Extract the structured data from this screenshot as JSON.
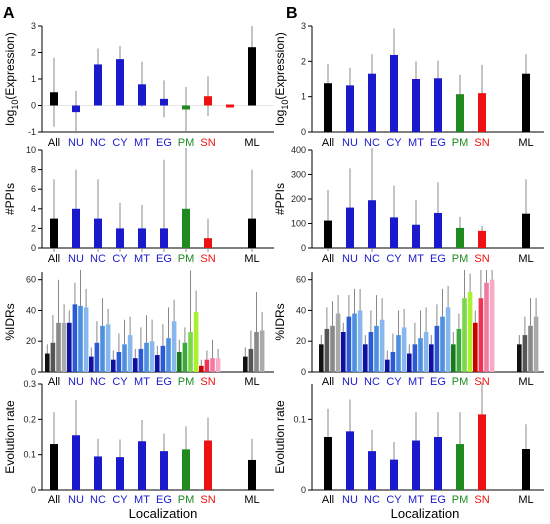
{
  "figure": {
    "panel_labels": [
      "A",
      "B"
    ],
    "xlabel": "Localization"
  },
  "colors": {
    "All": "#000000",
    "NU": "#1a1acc",
    "NC": "#1a1acc",
    "CY": "#1a1acc",
    "MT": "#1a1acc",
    "EG": "#1a1acc",
    "PM": "#1f8a1f",
    "SN": "#ee1111",
    "ML": "#000000"
  },
  "idr_colors": {
    "All": [
      "#111111",
      "#555555",
      "#888888",
      "#aaaaaa"
    ],
    "NU": [
      "#1010a0",
      "#2a5ad6",
      "#4f8fe0",
      "#87b7ec"
    ],
    "NC": [
      "#1010a0",
      "#2a5ad6",
      "#4f8fe0",
      "#87b7ec"
    ],
    "CY": [
      "#1010a0",
      "#2a5ad6",
      "#4f8fe0",
      "#87b7ec"
    ],
    "MT": [
      "#1010a0",
      "#2a5ad6",
      "#4f8fe0",
      "#87b7ec"
    ],
    "EG": [
      "#1010a0",
      "#2a5ad6",
      "#4f8fe0",
      "#87b7ec"
    ],
    "PM": [
      "#1a7a1a",
      "#3aa83a",
      "#7ad64a",
      "#a8f030"
    ],
    "SN": [
      "#cc0000",
      "#ee3355",
      "#f27aa0",
      "#f8aac4"
    ],
    "ML": [
      "#111111",
      "#555555",
      "#888888",
      "#aaaaaa"
    ]
  },
  "chart_data": [
    {
      "panel": "A",
      "type": "bar",
      "metric": "expression",
      "ylabel": "log10(Expression)",
      "ylim": [
        -1,
        3
      ],
      "yticks": [
        -1,
        0,
        1,
        2,
        3
      ],
      "categories": [
        "All",
        "NU",
        "NC",
        "CY",
        "MT",
        "EG",
        "PM",
        "SN",
        "ML"
      ],
      "values": [
        0.5,
        -0.25,
        1.55,
        1.75,
        0.8,
        0.25,
        -0.15,
        0.35,
        2.2
      ],
      "errors": [
        1.3,
        0.8,
        0.6,
        0.5,
        0.85,
        0.7,
        0.85,
        0.75,
        0.8
      ],
      "extra_bars": [
        {
          "after": "SN",
          "value": 0.0,
          "color": "#ee1111"
        }
      ]
    },
    {
      "panel": "A",
      "type": "bar",
      "metric": "ppis",
      "ylabel": "#PPIs",
      "ylim": [
        0,
        10
      ],
      "yticks": [
        0,
        2,
        4,
        6,
        8,
        10
      ],
      "categories": [
        "All",
        "NU",
        "NC",
        "CY",
        "MT",
        "EG",
        "PM",
        "SN",
        "ML"
      ],
      "values": [
        3,
        4,
        3,
        2,
        2,
        2,
        4,
        1,
        3
      ],
      "errors": [
        4,
        4,
        4,
        2.6,
        2.4,
        7,
        6.4,
        2,
        5
      ]
    },
    {
      "panel": "A",
      "type": "bar",
      "metric": "idr",
      "ylabel": "%IDRs",
      "ylim": [
        0,
        65
      ],
      "yticks": [
        0,
        20,
        40,
        60
      ],
      "categories": [
        "All",
        "NU",
        "NC",
        "CY",
        "MT",
        "EG",
        "PM",
        "SN",
        "ML"
      ],
      "series_values": [
        [
          12,
          19,
          32,
          32
        ],
        [
          32,
          44,
          43,
          42
        ],
        [
          10,
          19,
          30,
          31
        ],
        [
          8,
          13,
          18,
          24
        ],
        [
          9,
          15,
          19,
          20
        ],
        [
          11,
          17,
          22,
          33
        ],
        [
          13,
          19,
          26,
          39
        ],
        [
          4,
          8,
          9,
          9
        ],
        [
          10,
          15,
          26,
          27
        ]
      ],
      "errors": [
        [
          6,
          18,
          28,
          12
        ],
        [
          8,
          14,
          24,
          12
        ],
        [
          6,
          14,
          18,
          10
        ],
        [
          6,
          12,
          16,
          12
        ],
        [
          6,
          14,
          18,
          14
        ],
        [
          6,
          14,
          20,
          14
        ],
        [
          8,
          10,
          40,
          14
        ],
        [
          4,
          6,
          12,
          6
        ],
        [
          6,
          12,
          26,
          12
        ]
      ]
    },
    {
      "panel": "A",
      "type": "bar",
      "metric": "evolution_rate",
      "ylabel": "Evolution rate",
      "ylim": [
        0,
        0.3
      ],
      "yticks": [
        0,
        0.1,
        0.2,
        0.3
      ],
      "categories": [
        "All",
        "NU",
        "NC",
        "CY",
        "MT",
        "EG",
        "PM",
        "SN",
        "ML"
      ],
      "values": [
        0.13,
        0.155,
        0.095,
        0.093,
        0.138,
        0.11,
        0.115,
        0.14,
        0.085
      ],
      "errors": [
        0.09,
        0.1,
        0.05,
        0.05,
        0.06,
        0.05,
        0.065,
        0.065,
        0.06
      ]
    },
    {
      "panel": "B",
      "type": "bar",
      "metric": "expression",
      "ylabel": "log10(Expression)",
      "ylim": [
        0,
        3
      ],
      "yticks": [
        0,
        1,
        2,
        3
      ],
      "categories": [
        "All",
        "NU",
        "NC",
        "CY",
        "MT",
        "EG",
        "PM",
        "SN",
        "ML"
      ],
      "values": [
        1.38,
        1.32,
        1.65,
        2.18,
        1.5,
        1.52,
        1.07,
        1.1,
        1.65
      ],
      "errors": [
        0.55,
        0.5,
        0.55,
        0.75,
        0.5,
        0.5,
        0.55,
        0.8,
        0.55
      ]
    },
    {
      "panel": "B",
      "type": "bar",
      "metric": "ppis",
      "ylabel": "#PPIs",
      "ylim": [
        0,
        400
      ],
      "yticks": [
        0,
        100,
        200,
        300,
        400
      ],
      "categories": [
        "All",
        "NU",
        "NC",
        "CY",
        "MT",
        "EG",
        "PM",
        "SN",
        "ML"
      ],
      "values": [
        112,
        165,
        195,
        125,
        95,
        143,
        82,
        70,
        140
      ],
      "errors": [
        125,
        160,
        260,
        130,
        100,
        125,
        45,
        20,
        140
      ]
    },
    {
      "panel": "B",
      "type": "bar",
      "metric": "idr",
      "ylabel": "%IDRs",
      "ylim": [
        0,
        65
      ],
      "yticks": [
        0,
        20,
        40,
        60
      ],
      "categories": [
        "All",
        "NU",
        "NC",
        "CY",
        "MT",
        "EG",
        "PM",
        "SN",
        "ML"
      ],
      "series_values": [
        [
          18,
          28,
          30,
          38
        ],
        [
          26,
          36,
          38,
          40
        ],
        [
          18,
          26,
          30,
          34
        ],
        [
          8,
          13,
          24,
          29
        ],
        [
          12,
          18,
          22,
          26
        ],
        [
          18,
          30,
          36,
          42
        ],
        [
          18,
          28,
          48,
          52
        ],
        [
          32,
          48,
          58,
          60
        ],
        [
          18,
          24,
          30,
          36
        ]
      ],
      "errors": [
        [
          6,
          14,
          16,
          12
        ],
        [
          6,
          14,
          16,
          14
        ],
        [
          6,
          14,
          20,
          14
        ],
        [
          6,
          12,
          16,
          12
        ],
        [
          6,
          14,
          18,
          16
        ],
        [
          6,
          14,
          18,
          14
        ],
        [
          8,
          10,
          20,
          12
        ],
        [
          8,
          20,
          24,
          10
        ],
        [
          6,
          12,
          18,
          12
        ]
      ]
    },
    {
      "panel": "B",
      "type": "bar",
      "metric": "evolution_rate",
      "ylabel": "Evolution rate",
      "ylim": [
        0,
        0.15
      ],
      "yticks": [
        0,
        0.1
      ],
      "categories": [
        "All",
        "NU",
        "NC",
        "CY",
        "MT",
        "EG",
        "PM",
        "SN",
        "ML"
      ],
      "values": [
        0.075,
        0.083,
        0.055,
        0.043,
        0.07,
        0.075,
        0.065,
        0.107,
        0.058
      ],
      "errors": [
        0.04,
        0.045,
        0.03,
        0.025,
        0.04,
        0.035,
        0.045,
        0.045,
        0.035
      ]
    }
  ]
}
